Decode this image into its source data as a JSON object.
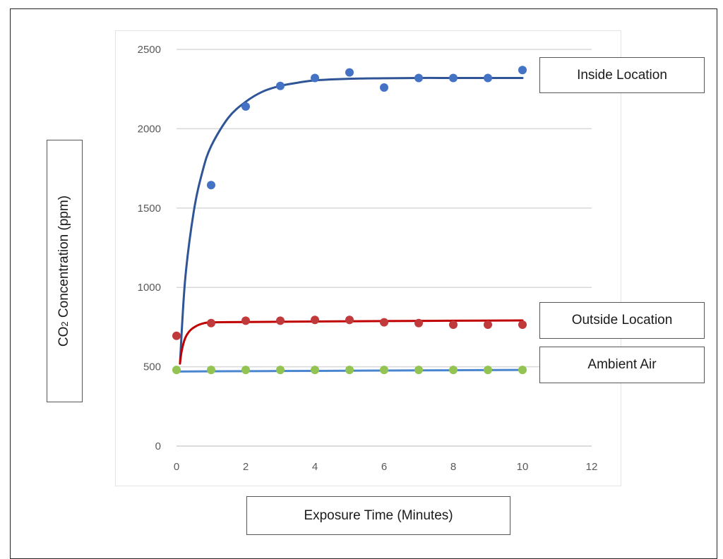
{
  "chart_data": {
    "type": "scatter",
    "title": "",
    "xlabel": "Exposure Time (Minutes)",
    "ylabel_prefix": "CO",
    "ylabel_sub": "2",
    "ylabel_suffix": " Concentration (ppm)",
    "xlim": [
      0,
      12
    ],
    "ylim": [
      0,
      2500
    ],
    "x_ticks": [
      0,
      2,
      4,
      6,
      8,
      10,
      12
    ],
    "y_ticks": [
      0,
      500,
      1000,
      1500,
      2000,
      2500
    ],
    "x_tick_labels": [
      "0",
      "2",
      "4",
      "6",
      "8",
      "10",
      "12"
    ],
    "y_tick_labels": [
      "0",
      "500",
      "1000",
      "1500",
      "2000",
      "2500"
    ],
    "grid": "horizontal",
    "series": [
      {
        "name": "Inside Location",
        "marker_color": "#4472c4",
        "line_color": "#2f5597",
        "x": [
          1,
          2,
          3,
          4,
          5,
          6,
          7,
          8,
          9,
          10
        ],
        "y": [
          1645,
          2140,
          2270,
          2320,
          2355,
          2260,
          2320,
          2320,
          2320,
          2370
        ],
        "trend": {
          "x": [
            0.1,
            0.25,
            0.5,
            0.75,
            1,
            1.5,
            2,
            2.5,
            3,
            3.5,
            4,
            5,
            6,
            7,
            8,
            9,
            10
          ],
          "y": [
            520,
            1050,
            1480,
            1730,
            1890,
            2070,
            2170,
            2235,
            2270,
            2290,
            2305,
            2315,
            2318,
            2320,
            2320,
            2320,
            2320
          ]
        }
      },
      {
        "name": "Outside Location",
        "marker_color": "#c0393b",
        "line_color": "#c00000",
        "x": [
          0,
          1,
          2,
          3,
          4,
          5,
          6,
          7,
          8,
          9,
          10
        ],
        "y": [
          695,
          775,
          790,
          790,
          795,
          795,
          780,
          775,
          765,
          765,
          765
        ],
        "trend": {
          "x": [
            0.1,
            0.15,
            0.25,
            0.4,
            0.6,
            0.8,
            1,
            1.5,
            2,
            4,
            6,
            8,
            10
          ],
          "y": [
            520,
            600,
            680,
            730,
            760,
            775,
            780,
            781,
            782,
            785,
            788,
            790,
            792
          ]
        }
      },
      {
        "name": "Ambient Air",
        "marker_color": "#92c353",
        "line_color": "#4a86d0",
        "x": [
          0,
          1,
          2,
          3,
          4,
          5,
          6,
          7,
          8,
          9,
          10
        ],
        "y": [
          480,
          480,
          480,
          480,
          480,
          480,
          480,
          480,
          480,
          480,
          480
        ],
        "trend": {
          "x": [
            0,
            2,
            4,
            6,
            8,
            10
          ],
          "y": [
            470,
            472,
            474,
            476,
            478,
            480
          ]
        }
      }
    ],
    "legend": [
      {
        "name": "Inside Location"
      },
      {
        "name": "Outside Location"
      },
      {
        "name": "Ambient Air"
      }
    ]
  }
}
